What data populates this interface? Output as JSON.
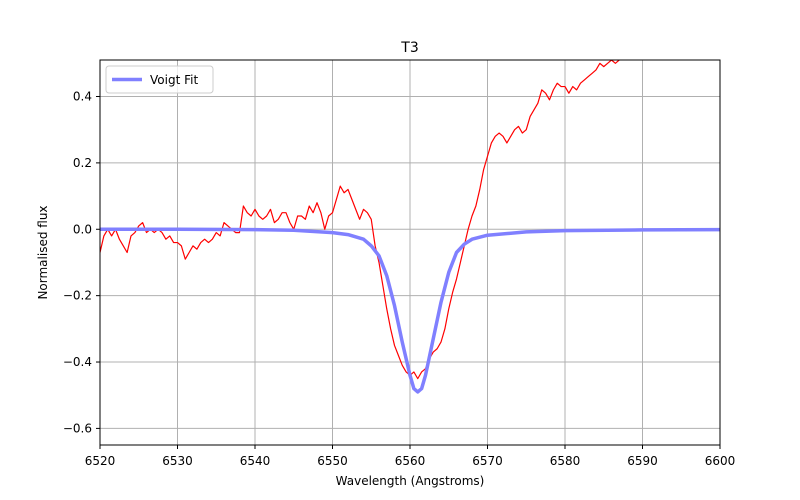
{
  "chart_data": {
    "type": "line",
    "title": "T3",
    "xlabel": "Wavelength (Angstroms)",
    "ylabel": "Normalised flux",
    "xlim": [
      6520,
      6600
    ],
    "ylim": [
      -0.65,
      0.51
    ],
    "xticks": [
      6520,
      6530,
      6540,
      6550,
      6560,
      6570,
      6580,
      6590,
      6600
    ],
    "yticks": [
      -0.6,
      -0.4,
      -0.2,
      0.0,
      0.2,
      0.4
    ],
    "ytick_labels": [
      "−0.6",
      "−0.4",
      "−0.2",
      "0.0",
      "0.2",
      "0.4"
    ],
    "grid": true,
    "legend": {
      "position": "top-left",
      "entries": [
        "Voigt Fit"
      ]
    },
    "colors": {
      "spectrum": "#ff0000",
      "fit": "#8080ff",
      "grid": "#b0b0b0"
    },
    "series": [
      {
        "role": "spectrum",
        "x": [
          6520.0,
          6520.5,
          6521.0,
          6521.5,
          6522.0,
          6522.5,
          6523.0,
          6523.5,
          6524.0,
          6524.5,
          6525.0,
          6525.5,
          6526.0,
          6526.5,
          6527.0,
          6527.5,
          6528.0,
          6528.5,
          6529.0,
          6529.5,
          6530.0,
          6530.5,
          6531.0,
          6531.5,
          6532.0,
          6532.5,
          6533.0,
          6533.5,
          6534.0,
          6534.5,
          6535.0,
          6535.5,
          6536.0,
          6536.5,
          6537.0,
          6537.5,
          6538.0,
          6538.5,
          6539.0,
          6539.5,
          6540.0,
          6540.5,
          6541.0,
          6541.5,
          6542.0,
          6542.5,
          6543.0,
          6543.5,
          6544.0,
          6544.5,
          6545.0,
          6545.5,
          6546.0,
          6546.5,
          6547.0,
          6547.5,
          6548.0,
          6548.5,
          6549.0,
          6549.5,
          6550.0,
          6550.5,
          6551.0,
          6551.5,
          6552.0,
          6552.5,
          6553.0,
          6553.5,
          6554.0,
          6554.5,
          6555.0,
          6555.5,
          6556.0,
          6556.5,
          6557.0,
          6557.5,
          6558.0,
          6558.5,
          6559.0,
          6559.5,
          6560.0,
          6560.5,
          6561.0,
          6561.5,
          6562.0,
          6562.5,
          6563.0,
          6563.5,
          6564.0,
          6564.5,
          6565.0,
          6565.5,
          6566.0,
          6566.5,
          6567.0,
          6567.5,
          6568.0,
          6568.5,
          6569.0,
          6569.5,
          6570.0,
          6570.5,
          6571.0,
          6571.5,
          6572.0,
          6572.5,
          6573.0,
          6573.5,
          6574.0,
          6574.5,
          6575.0,
          6575.5,
          6576.0,
          6576.5,
          6577.0,
          6577.5,
          6578.0,
          6578.5,
          6579.0,
          6579.5,
          6580.0,
          6580.5,
          6581.0,
          6581.5,
          6582.0,
          6582.5,
          6583.0,
          6583.5,
          6584.0,
          6584.5,
          6585.0,
          6585.5,
          6586.0,
          6586.5,
          6587.0
        ],
        "y": [
          -0.07,
          -0.02,
          0.0,
          -0.02,
          0.0,
          -0.03,
          -0.05,
          -0.07,
          -0.02,
          -0.01,
          0.01,
          0.02,
          -0.01,
          0.0,
          -0.01,
          0.0,
          -0.01,
          -0.03,
          -0.02,
          -0.04,
          -0.04,
          -0.05,
          -0.09,
          -0.07,
          -0.05,
          -0.06,
          -0.04,
          -0.03,
          -0.04,
          -0.03,
          -0.01,
          -0.02,
          0.02,
          0.01,
          0.0,
          -0.01,
          -0.01,
          0.07,
          0.05,
          0.04,
          0.06,
          0.04,
          0.03,
          0.04,
          0.06,
          0.02,
          0.03,
          0.05,
          0.05,
          0.02,
          0.0,
          0.04,
          0.04,
          0.03,
          0.07,
          0.05,
          0.08,
          0.05,
          0.0,
          0.04,
          0.05,
          0.09,
          0.13,
          0.11,
          0.12,
          0.09,
          0.06,
          0.03,
          0.06,
          0.05,
          0.03,
          -0.05,
          -0.1,
          -0.17,
          -0.24,
          -0.3,
          -0.35,
          -0.38,
          -0.41,
          -0.43,
          -0.44,
          -0.43,
          -0.45,
          -0.43,
          -0.42,
          -0.39,
          -0.37,
          -0.36,
          -0.34,
          -0.3,
          -0.24,
          -0.19,
          -0.15,
          -0.1,
          -0.05,
          0.0,
          0.04,
          0.07,
          0.12,
          0.18,
          0.22,
          0.26,
          0.28,
          0.29,
          0.28,
          0.26,
          0.28,
          0.3,
          0.31,
          0.29,
          0.3,
          0.34,
          0.36,
          0.38,
          0.42,
          0.41,
          0.39,
          0.42,
          0.44,
          0.43,
          0.43,
          0.41,
          0.43,
          0.42,
          0.44,
          0.45,
          0.46,
          0.47,
          0.48,
          0.5,
          0.49,
          0.5,
          0.51,
          0.5,
          0.51
        ]
      },
      {
        "role": "fit",
        "name": "Voigt Fit",
        "x": [
          6520,
          6530,
          6540,
          6545,
          6550,
          6552,
          6554,
          6555,
          6556,
          6557,
          6558,
          6559,
          6560,
          6560.5,
          6561,
          6561.5,
          6562,
          6563,
          6564,
          6565,
          6566,
          6567,
          6568,
          6570,
          6575,
          6580,
          6590,
          6600
        ],
        "y": [
          0.0,
          0.0,
          -0.001,
          -0.003,
          -0.01,
          -0.016,
          -0.03,
          -0.05,
          -0.08,
          -0.14,
          -0.23,
          -0.34,
          -0.44,
          -0.48,
          -0.49,
          -0.48,
          -0.44,
          -0.33,
          -0.22,
          -0.13,
          -0.07,
          -0.045,
          -0.03,
          -0.018,
          -0.008,
          -0.004,
          -0.002,
          -0.001
        ]
      }
    ]
  }
}
